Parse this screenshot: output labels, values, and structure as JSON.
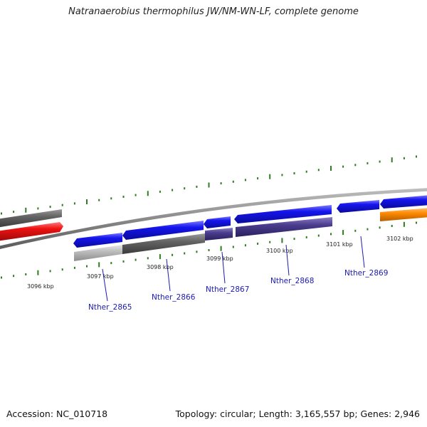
{
  "title": "Natranaerobius thermophilus JW/NM-WN-LF, complete genome",
  "footer": {
    "accession": "Accession: NC_010718",
    "summary": "Topology: circular; Length: 3,165,557 bp; Genes: 2,946"
  },
  "colors": {
    "backbone": "#8a8a8a",
    "gene_blue": "#1515ee",
    "gene_red": "#ee1111",
    "gene_orange": "#ff8a00",
    "feature_dark_gray": "#636363",
    "feature_light_gray": "#bdbdbd",
    "feature_purple": "#4a3c8c",
    "tick_green": "#2e7d1e",
    "label_blue": "#1a1ab4"
  },
  "kbp_labels": [
    "3096 kbp",
    "3097 kbp",
    "3098 kbp",
    "3099 kbp",
    "3100 kbp",
    "3101 kbp",
    "3102 kbp"
  ],
  "gene_labels": [
    "Nther_2865",
    "Nther_2866",
    "Nther_2867",
    "Nther_2868",
    "Nther_2869"
  ]
}
